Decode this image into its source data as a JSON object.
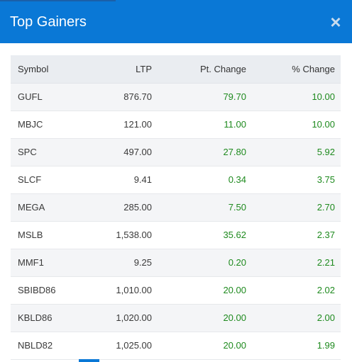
{
  "header": {
    "title": "Top Gainers",
    "close_glyph": "×"
  },
  "table": {
    "columns": [
      "Symbol",
      "LTP",
      "Pt. Change",
      "% Change"
    ],
    "rows": [
      {
        "symbol": "GUFL",
        "ltp": "876.70",
        "pt_change": "79.70",
        "pct_change": "10.00"
      },
      {
        "symbol": "MBJC",
        "ltp": "121.00",
        "pt_change": "11.00",
        "pct_change": "10.00"
      },
      {
        "symbol": "SPC",
        "ltp": "497.00",
        "pt_change": "27.80",
        "pct_change": "5.92"
      },
      {
        "symbol": "SLCF",
        "ltp": "9.41",
        "pt_change": "0.34",
        "pct_change": "3.75"
      },
      {
        "symbol": "MEGA",
        "ltp": "285.00",
        "pt_change": "7.50",
        "pct_change": "2.70"
      },
      {
        "symbol": "MSLB",
        "ltp": "1,538.00",
        "pt_change": "35.62",
        "pct_change": "2.37"
      },
      {
        "symbol": "MMF1",
        "ltp": "9.25",
        "pt_change": "0.20",
        "pct_change": "2.21"
      },
      {
        "symbol": "SBIBD86",
        "ltp": "1,010.00",
        "pt_change": "20.00",
        "pct_change": "2.02"
      },
      {
        "symbol": "KBLD86",
        "ltp": "1,020.00",
        "pt_change": "20.00",
        "pct_change": "2.00"
      },
      {
        "symbol": "NBLD82",
        "ltp": "1,025.00",
        "pt_change": "20.00",
        "pct_change": "1.99"
      }
    ]
  },
  "colors": {
    "header_bg": "#0a78d6",
    "positive": "#1e8a1e"
  },
  "icons": {
    "close": "close-icon"
  }
}
